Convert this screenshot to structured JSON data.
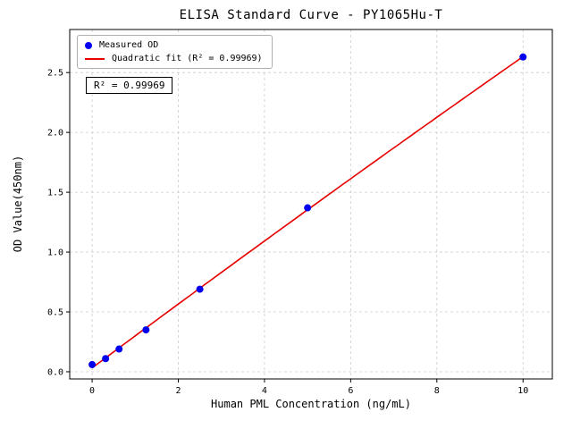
{
  "chart_data": {
    "type": "scatter",
    "title": "ELISA Standard Curve - PY1065Hu-T",
    "xlabel": "Human PML Concentration (ng/mL)",
    "ylabel": "OD Value(450nm)",
    "series": [
      {
        "name": "Measured OD",
        "type": "scatter",
        "color": "#0000ee",
        "x": [
          0,
          0.313,
          0.625,
          1.25,
          2.5,
          5,
          10
        ],
        "y": [
          0.06,
          0.11,
          0.19,
          0.35,
          0.69,
          1.37,
          2.63
        ]
      },
      {
        "name": "Quadratic fit (R² = 0.99969)",
        "type": "line",
        "fit": "quadratic",
        "color": "#e60000"
      }
    ],
    "legend": [
      "Measured OD",
      "Quadratic fit (R² = 0.99969)"
    ],
    "legend_position": "upper left",
    "annotation": "R² = 0.99969",
    "xticks": [
      0,
      2,
      4,
      6,
      8,
      10
    ],
    "yticks": [
      0.0,
      0.5,
      1.0,
      1.5,
      2.0,
      2.5
    ],
    "xlim": [
      -0.52,
      10.68
    ],
    "ylim": [
      -0.06,
      2.86
    ],
    "grid": true,
    "colors": {
      "point": "#0000ee",
      "line": "#e60000",
      "grid": "#cccccc",
      "axis": "#000000",
      "background": "#ffffff"
    }
  }
}
